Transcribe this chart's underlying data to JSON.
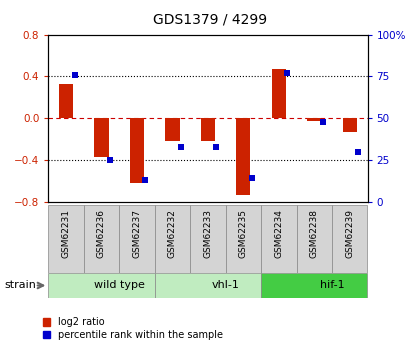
{
  "title": "GDS1379 / 4299",
  "samples": [
    "GSM62231",
    "GSM62236",
    "GSM62237",
    "GSM62232",
    "GSM62233",
    "GSM62235",
    "GSM62234",
    "GSM62238",
    "GSM62239"
  ],
  "log2_ratio": [
    0.33,
    -0.37,
    -0.62,
    -0.22,
    -0.22,
    -0.73,
    0.47,
    -0.03,
    -0.13
  ],
  "percentile_rank": [
    76,
    25,
    13,
    33,
    33,
    14,
    77,
    48,
    30
  ],
  "groups": [
    {
      "label": "wild type",
      "start": 0,
      "end": 3,
      "color": "#c0ecc0"
    },
    {
      "label": "vhl-1",
      "start": 3,
      "end": 6,
      "color": "#c0ecc0"
    },
    {
      "label": "hif-1",
      "start": 6,
      "end": 9,
      "color": "#44cc44"
    }
  ],
  "ylim_left": [
    -0.8,
    0.8
  ],
  "ylim_right": [
    0,
    100
  ],
  "bar_width": 0.4,
  "red_color": "#cc2200",
  "blue_color": "#0000cc",
  "zero_line_color": "#cc0000",
  "strain_label": "strain",
  "legend_log2": "log2 ratio",
  "legend_pct": "percentile rank within the sample",
  "sample_bg": "#d4d4d4",
  "title_fontsize": 10
}
